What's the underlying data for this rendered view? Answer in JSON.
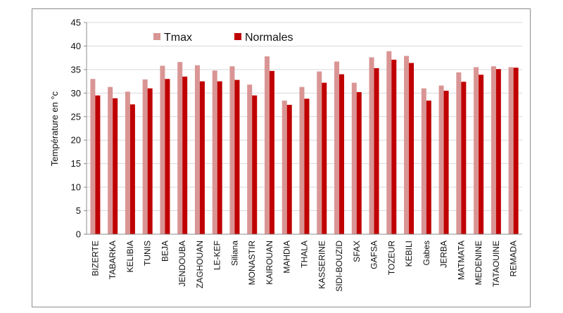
{
  "chart_data": {
    "type": "bar",
    "title": "",
    "xlabel": "",
    "ylabel": "Température en °c",
    "ylim": [
      0,
      45
    ],
    "yticks": [
      0,
      5,
      10,
      15,
      20,
      25,
      30,
      35,
      40,
      45
    ],
    "grid": true,
    "legend_position": "top-left",
    "categories": [
      "BIZERTE",
      "TABARKA",
      "KELIBIA",
      "TUNIS",
      "BEJA",
      "JENDOUBA",
      "ZAGHOUAN",
      "LE-KEF",
      "Siliana",
      "MONASTIR",
      "KAIROUAN",
      "MAHDIA",
      "THALA",
      "KASSERINE",
      "SIDI-BOUZID",
      "SFAX",
      "GAFSA",
      "TOZEUR",
      "KEBILI",
      "Gabes",
      "JERBA",
      "MATMATA",
      "MEDENINE",
      "TATAOUINE",
      "REMADA"
    ],
    "series": [
      {
        "name": "Tmax",
        "color": "#d99594",
        "values": [
          33.0,
          31.3,
          30.3,
          32.9,
          35.8,
          36.6,
          35.9,
          34.8,
          35.7,
          31.8,
          37.8,
          28.4,
          31.3,
          34.6,
          36.7,
          32.2,
          37.6,
          38.9,
          37.9,
          31.0,
          31.6,
          34.4,
          35.5,
          35.7,
          35.5
        ]
      },
      {
        "name": "Normales",
        "color": "#c00000",
        "values": [
          29.5,
          28.9,
          27.6,
          31.0,
          33.0,
          33.5,
          32.5,
          32.5,
          32.8,
          29.5,
          34.7,
          27.5,
          28.8,
          32.2,
          34.0,
          30.2,
          35.3,
          37.1,
          36.4,
          28.4,
          30.5,
          32.4,
          33.9,
          35.1,
          35.4
        ]
      }
    ]
  }
}
